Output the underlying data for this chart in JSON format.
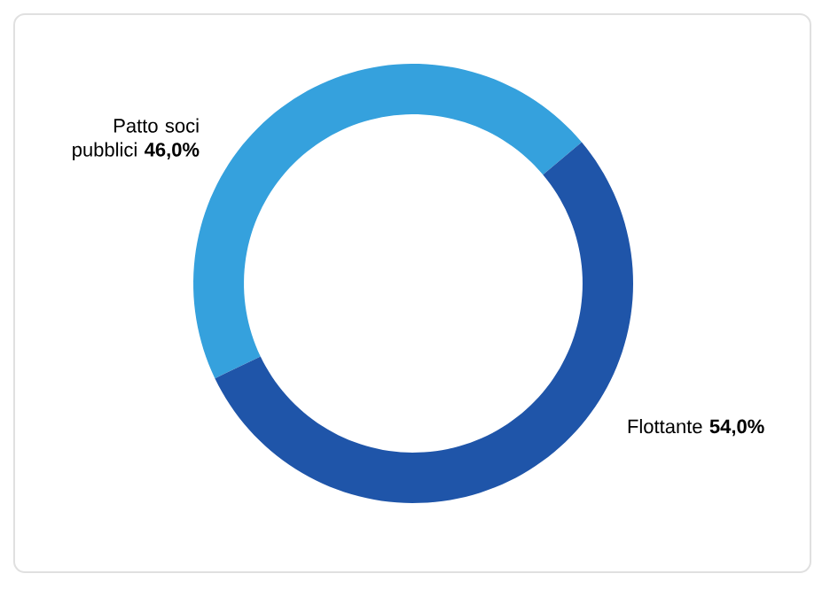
{
  "chart_data": {
    "type": "donut",
    "categories": [
      "Patto soci pubblici",
      "Flottante"
    ],
    "values": [
      46,
      54
    ],
    "colors": [
      "#35a1dd",
      "#1f55a9"
    ],
    "value_labels": [
      "46,0%",
      "54,0%"
    ]
  }
}
